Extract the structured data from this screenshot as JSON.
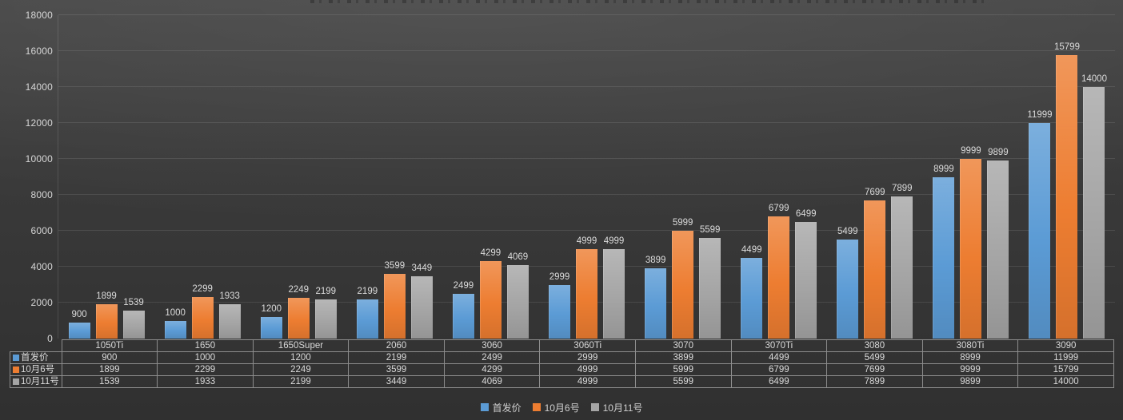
{
  "chart_data": {
    "type": "bar",
    "title": "",
    "categories": [
      "1050Ti",
      "1650",
      "1650Super",
      "2060",
      "3060",
      "3060Ti",
      "3070",
      "3070Ti",
      "3080",
      "3080Ti",
      "3090"
    ],
    "series": [
      {
        "name": "首发价",
        "color": "#5B9BD5",
        "values": [
          900,
          1000,
          1200,
          2199,
          2499,
          2999,
          3899,
          4499,
          5499,
          8999,
          11999
        ]
      },
      {
        "name": "10月6号",
        "color": "#ED7D31",
        "values": [
          1899,
          2299,
          2249,
          3599,
          4299,
          4999,
          5999,
          6799,
          7699,
          9999,
          15799
        ]
      },
      {
        "name": "10月11号",
        "color": "#A5A5A5",
        "values": [
          1539,
          1933,
          2199,
          3449,
          4069,
          4999,
          5599,
          6499,
          7899,
          9899,
          14000
        ]
      }
    ],
    "xlabel": "",
    "ylabel": "",
    "ylim": [
      0,
      18000
    ],
    "yticks": [
      0,
      2000,
      4000,
      6000,
      8000,
      10000,
      12000,
      14000,
      16000,
      18000
    ],
    "grid": true,
    "legend_position": "bottom",
    "data_labels": true,
    "data_table_shown": true
  },
  "legend": {
    "items": [
      {
        "label": "首发价",
        "color": "#5B9BD5"
      },
      {
        "label": "10月6号",
        "color": "#ED7D31"
      },
      {
        "label": "10月11号",
        "color": "#A5A5A5"
      }
    ]
  },
  "colors": {
    "background": "#3a3a3a",
    "gridline": "rgba(255,255,255,0.10)",
    "table_border": "#8d8d8d",
    "text": "#d9d9d9"
  }
}
